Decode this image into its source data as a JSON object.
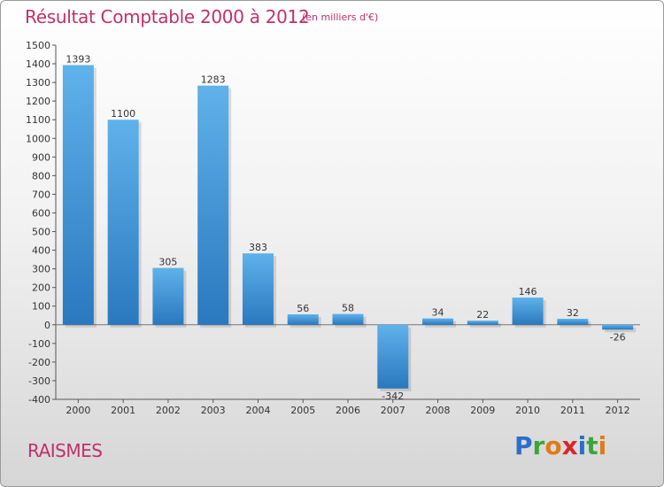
{
  "header": {
    "title": "Résultat Comptable 2000 à 2012",
    "unit": "(en milliers d'€)"
  },
  "footer": {
    "commune": "RAISMES",
    "logo_letters": [
      {
        "ch": "P",
        "color": "#2a6fc9"
      },
      {
        "ch": "r",
        "color": "#3aa63a"
      },
      {
        "ch": "o",
        "color": "#e07a1a"
      },
      {
        "ch": "x",
        "color": "#d8262c"
      },
      {
        "ch": "i",
        "color": "#2a6fc9"
      },
      {
        "ch": "t",
        "color": "#3aa63a"
      },
      {
        "ch": "i",
        "color": "#e07a1a"
      }
    ]
  },
  "colors": {
    "bar_light": "#5fb2ea",
    "bar_dark": "#2a78bf",
    "accent": "#c0306a"
  },
  "chart_data": {
    "type": "bar",
    "title": "Résultat Comptable 2000 à 2012",
    "subtitle": "(en milliers d'€)",
    "xlabel": "",
    "ylabel": "",
    "categories": [
      "2000",
      "2001",
      "2002",
      "2003",
      "2004",
      "2005",
      "2006",
      "2007",
      "2008",
      "2009",
      "2010",
      "2011",
      "2012"
    ],
    "values": [
      1393,
      1100,
      305,
      1283,
      383,
      56,
      58,
      -342,
      34,
      22,
      146,
      32,
      -26
    ],
    "value_labels": [
      "1393",
      "1100",
      "305",
      "1283",
      "383",
      "56",
      "58",
      "-342",
      "34",
      "22",
      "146",
      "32",
      "-26"
    ],
    "ylim": [
      -400,
      1500
    ],
    "yticks": [
      -400,
      -300,
      -200,
      -100,
      0,
      100,
      200,
      300,
      400,
      500,
      600,
      700,
      800,
      900,
      1000,
      1100,
      1200,
      1300,
      1400,
      1500
    ],
    "grid": false,
    "legend": "none"
  }
}
